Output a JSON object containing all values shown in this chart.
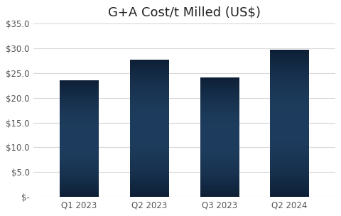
{
  "title": "G+A Cost/t Milled (US$)",
  "categories": [
    "Q1 2023",
    "Q2 2023",
    "Q3 2023",
    "Q2 2024"
  ],
  "values": [
    23.5,
    27.6,
    24.1,
    29.7
  ],
  "bar_color_dark": "#0d1f35",
  "bar_color_mid": "#1e3d5e",
  "ylim": [
    0,
    35
  ],
  "yticks": [
    0,
    5,
    10,
    15,
    20,
    25,
    30,
    35
  ],
  "ytick_labels": [
    "$-",
    "$5.0",
    "$10.0",
    "$15.0",
    "$20.0",
    "$25.0",
    "$30.0",
    "$35.0"
  ],
  "background_color": "#ffffff",
  "grid_color": "#d8d8d8",
  "title_fontsize": 13,
  "tick_fontsize": 8.5,
  "bar_width": 0.55
}
